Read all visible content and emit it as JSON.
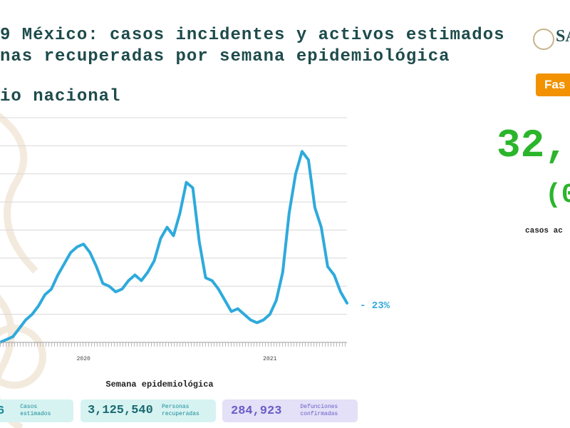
{
  "header": {
    "title_line1": "9 México: casos incidentes y activos estimados",
    "title_line2": "nas recuperadas por semana epidemiológica",
    "subtitle": "io nacional",
    "logo": "SA"
  },
  "chart_data": {
    "type": "line",
    "categories": [
      null,
      null,
      null,
      null,
      null,
      null,
      null,
      null,
      null,
      null,
      null,
      null,
      null,
      "2020",
      null,
      null,
      null,
      null,
      null,
      null,
      null,
      null,
      null,
      null,
      null,
      null,
      null,
      null,
      null,
      null,
      null,
      null,
      null,
      null,
      null,
      null,
      null,
      null,
      null,
      null,
      null,
      null,
      "2021",
      null,
      null,
      null,
      null,
      null,
      null,
      null,
      null,
      null,
      null,
      null,
      null
    ],
    "series": [
      {
        "color": "#2eaadc",
        "values": [
          0,
          0.1,
          0.2,
          0.5,
          0.8,
          1.0,
          1.3,
          1.7,
          1.9,
          2.4,
          2.8,
          3.2,
          3.4,
          3.5,
          3.2,
          2.7,
          2.1,
          2.0,
          1.8,
          1.9,
          2.2,
          2.4,
          2.2,
          2.5,
          2.9,
          3.7,
          4.1,
          3.8,
          4.6,
          5.7,
          5.5,
          3.6,
          2.3,
          2.2,
          1.9,
          1.5,
          1.1,
          1.2,
          1.0,
          0.8,
          0.7,
          0.8,
          1.0,
          1.5,
          2.5,
          4.6,
          6.0,
          6.8,
          6.5,
          4.8,
          4.1,
          2.7,
          2.4,
          1.8,
          1.4
        ]
      }
    ],
    "ylim": [
      0,
      8
    ],
    "grid_values": [
      1,
      2,
      3,
      4,
      5,
      6,
      7,
      8
    ],
    "grid": true,
    "annotation": "- 23%",
    "xlabel": "Semana epidemiológica"
  },
  "side": {
    "button": "Fas",
    "big_number": "32,",
    "percent": "(0",
    "caption": "casos ac"
  },
  "summary": [
    {
      "value": "6",
      "label": "Casos estimados"
    },
    {
      "value": "3,125,540",
      "label": "Personas recuperadas"
    },
    {
      "value": "284,923",
      "label": "Defunciones confirmadas"
    }
  ]
}
